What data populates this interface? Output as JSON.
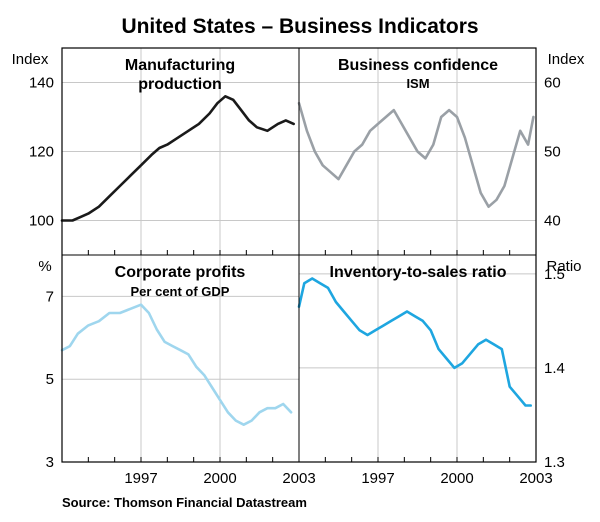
{
  "figure": {
    "title": "United States – Business Indicators",
    "source": "Source: Thomson Financial Datastream"
  },
  "colors": {
    "manufacturing": "#1a1a1a",
    "confidence": "#9aa0a6",
    "profits": "#9fd6ee",
    "inventory": "#1ea6e0",
    "grid": "#c8c8c8",
    "frame": "#000000"
  },
  "chart_data": [
    {
      "type": "line",
      "panel": "top-left",
      "title": "Manufacturing",
      "title2": "production",
      "subtitle": "",
      "ylabel": "Index",
      "ylabel_side": "left",
      "ylim": [
        90,
        150
      ],
      "yticks": [
        100,
        120,
        140
      ],
      "xlim": [
        1994,
        2003
      ],
      "series": [
        {
          "x": [
            1994.0,
            1994.4,
            1994.7,
            1995.0,
            1995.4,
            1995.8,
            1996.2,
            1996.6,
            1997.0,
            1997.4,
            1997.7,
            1998.0,
            1998.4,
            1998.8,
            1999.2,
            1999.6,
            1999.9,
            2000.2,
            2000.5,
            2000.8,
            2001.1,
            2001.4,
            2001.8,
            2002.2,
            2002.5,
            2002.8
          ],
          "y": [
            100,
            100,
            101,
            102,
            104,
            107,
            110,
            113,
            116,
            119,
            121,
            122,
            124,
            126,
            128,
            131,
            134,
            136,
            135,
            132,
            129,
            127,
            126,
            128,
            129,
            128
          ]
        }
      ]
    },
    {
      "type": "line",
      "panel": "top-right",
      "title": "Business confidence",
      "title2": "",
      "subtitle": "ISM",
      "ylabel": "Index",
      "ylabel_side": "right",
      "ylim": [
        35,
        65
      ],
      "yticks": [
        40,
        50,
        60
      ],
      "xlim": [
        1994,
        2003
      ],
      "series": [
        {
          "x": [
            1994.0,
            1994.3,
            1994.6,
            1994.9,
            1995.2,
            1995.5,
            1995.8,
            1996.1,
            1996.4,
            1996.7,
            1997.0,
            1997.3,
            1997.6,
            1997.9,
            1998.2,
            1998.5,
            1998.8,
            1999.1,
            1999.4,
            1999.7,
            2000.0,
            2000.3,
            2000.6,
            2000.9,
            2001.2,
            2001.5,
            2001.8,
            2002.1,
            2002.4,
            2002.7,
            2002.9
          ],
          "y": [
            57,
            53,
            50,
            48,
            47,
            46,
            48,
            50,
            51,
            53,
            54,
            55,
            56,
            54,
            52,
            50,
            49,
            51,
            55,
            56,
            55,
            52,
            48,
            44,
            42,
            43,
            45,
            49,
            53,
            51,
            55
          ]
        }
      ]
    },
    {
      "type": "line",
      "panel": "bottom-left",
      "title": "Corporate profits",
      "title2": "",
      "subtitle": "Per cent of GDP",
      "ylabel": "%",
      "ylabel_side": "left",
      "ylim": [
        3,
        8
      ],
      "yticks": [
        3,
        5,
        7
      ],
      "xticks": [
        "1997",
        "2000",
        "2003"
      ],
      "xlim": [
        1994,
        2003
      ],
      "series": [
        {
          "x": [
            1994.0,
            1994.3,
            1994.6,
            1995.0,
            1995.4,
            1995.8,
            1996.2,
            1996.6,
            1997.0,
            1997.3,
            1997.6,
            1997.9,
            1998.2,
            1998.5,
            1998.8,
            1999.1,
            1999.4,
            1999.7,
            2000.0,
            2000.3,
            2000.6,
            2000.9,
            2001.2,
            2001.5,
            2001.8,
            2002.1,
            2002.4,
            2002.7
          ],
          "y": [
            5.7,
            5.8,
            6.1,
            6.3,
            6.4,
            6.6,
            6.6,
            6.7,
            6.8,
            6.6,
            6.2,
            5.9,
            5.8,
            5.7,
            5.6,
            5.3,
            5.1,
            4.8,
            4.5,
            4.2,
            4.0,
            3.9,
            4.0,
            4.2,
            4.3,
            4.3,
            4.4,
            4.2
          ]
        }
      ]
    },
    {
      "type": "line",
      "panel": "bottom-right",
      "title": "Inventory-to-sales ratio",
      "title2": "",
      "subtitle": "",
      "ylabel": "Ratio",
      "ylabel_side": "right",
      "ylim": [
        1.3,
        1.52
      ],
      "yticks": [
        1.3,
        1.4,
        1.5
      ],
      "xticks": [
        "1997",
        "2000",
        "2003"
      ],
      "xlim": [
        1994,
        2003
      ],
      "series": [
        {
          "x": [
            1994.0,
            1994.2,
            1994.5,
            1994.8,
            1995.1,
            1995.4,
            1995.7,
            1996.0,
            1996.3,
            1996.6,
            1996.9,
            1997.2,
            1997.5,
            1997.8,
            1998.1,
            1998.4,
            1998.7,
            1999.0,
            1999.3,
            1999.6,
            1999.9,
            2000.2,
            2000.5,
            2000.8,
            2001.1,
            2001.4,
            2001.7,
            2002.0,
            2002.3,
            2002.6,
            2002.8
          ],
          "y": [
            1.465,
            1.49,
            1.495,
            1.49,
            1.485,
            1.47,
            1.46,
            1.45,
            1.44,
            1.435,
            1.44,
            1.445,
            1.45,
            1.455,
            1.46,
            1.455,
            1.45,
            1.44,
            1.42,
            1.41,
            1.4,
            1.405,
            1.415,
            1.425,
            1.43,
            1.425,
            1.42,
            1.38,
            1.37,
            1.36,
            1.36
          ]
        }
      ]
    }
  ]
}
